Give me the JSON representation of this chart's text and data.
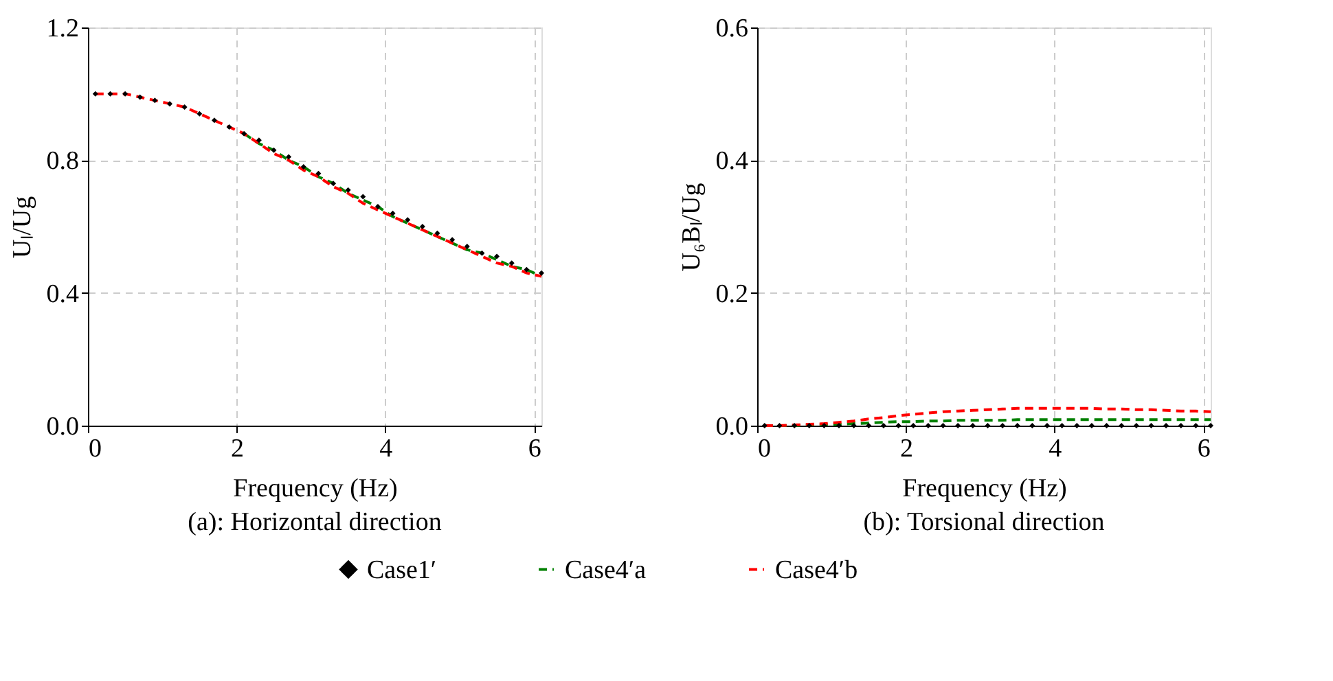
{
  "chart_data": [
    {
      "type": "line",
      "title": "(a): Horizontal direction",
      "xlabel": "Frequency (Hz)",
      "ylabel": "Uₗ/Ug",
      "xlim": [
        0,
        6.1
      ],
      "xticks": [
        0,
        2,
        4,
        6
      ],
      "ylim": [
        0,
        1.2
      ],
      "yticks": [
        {
          "value": 0,
          "label": "0.0"
        },
        0.4,
        0.8,
        1.2
      ],
      "grid": true,
      "legend": "bottom",
      "x": [
        0.1,
        0.3,
        0.5,
        0.7,
        0.9,
        1.1,
        1.3,
        1.5,
        1.7,
        1.9,
        2.1,
        2.3,
        2.5,
        2.7,
        2.9,
        3.1,
        3.3,
        3.5,
        3.7,
        3.9,
        4.1,
        4.3,
        4.5,
        4.7,
        4.9,
        5.1,
        5.3,
        5.5,
        5.7,
        5.9,
        6.1
      ],
      "series": [
        {
          "name": "Case1′",
          "type": "scatter",
          "color": "#000000",
          "marker": "diamond",
          "values": [
            1.0,
            1.0,
            1.0,
            0.99,
            0.98,
            0.97,
            0.96,
            0.94,
            0.92,
            0.9,
            0.88,
            0.86,
            0.83,
            0.81,
            0.78,
            0.76,
            0.73,
            0.71,
            0.69,
            0.66,
            0.64,
            0.62,
            0.6,
            0.58,
            0.56,
            0.54,
            0.52,
            0.51,
            0.49,
            0.47,
            0.46
          ]
        },
        {
          "name": "Case4′a",
          "color": "#008000",
          "line_style": "dashed",
          "values": [
            null,
            null,
            null,
            null,
            null,
            null,
            null,
            null,
            null,
            null,
            0.88,
            0.85,
            0.83,
            0.8,
            0.78,
            0.75,
            0.73,
            0.7,
            0.68,
            0.66,
            0.63,
            0.61,
            0.59,
            0.57,
            0.55,
            0.53,
            0.52,
            0.5,
            0.48,
            0.47,
            0.45
          ]
        },
        {
          "name": "Case4′b",
          "color": "#ff0000",
          "line_style": "dashed",
          "values": [
            1.0,
            1.0,
            1.0,
            0.99,
            0.98,
            0.97,
            0.96,
            0.94,
            0.92,
            0.9,
            0.88,
            0.85,
            0.82,
            0.8,
            0.77,
            0.75,
            0.72,
            0.7,
            0.67,
            0.65,
            0.63,
            0.61,
            0.59,
            0.57,
            0.55,
            0.53,
            0.51,
            0.49,
            0.48,
            0.46,
            0.45
          ]
        }
      ]
    },
    {
      "type": "line",
      "title": "(b): Torsional direction",
      "xlabel": "Frequency (Hz)",
      "ylabel": "U₆Bₗ/Ug",
      "xlim": [
        0,
        6.1
      ],
      "xticks": [
        0,
        2,
        4,
        6
      ],
      "ylim": [
        0,
        0.6
      ],
      "yticks": [
        {
          "value": 0,
          "label": "0.0"
        },
        0.2,
        0.4,
        0.6
      ],
      "grid": true,
      "legend": "bottom",
      "x": [
        0.1,
        0.3,
        0.5,
        0.7,
        0.9,
        1.1,
        1.3,
        1.5,
        1.7,
        1.9,
        2.1,
        2.3,
        2.5,
        2.7,
        2.9,
        3.1,
        3.3,
        3.5,
        3.7,
        3.9,
        4.1,
        4.3,
        4.5,
        4.7,
        4.9,
        5.1,
        5.3,
        5.5,
        5.7,
        5.9,
        6.1
      ],
      "series": [
        {
          "name": "Case1′",
          "type": "scatter",
          "color": "#000000",
          "marker": "diamond",
          "values": [
            0,
            0,
            0,
            0,
            0,
            0,
            0,
            0,
            0,
            0,
            0,
            0,
            0,
            0,
            0,
            0,
            0,
            0,
            0,
            0,
            0,
            0,
            0,
            0,
            0,
            0,
            0,
            0,
            0,
            0,
            0
          ]
        },
        {
          "name": "Case4′a",
          "color": "#008000",
          "line_style": "dashed",
          "values": [
            0.0,
            0.0,
            0.0,
            0.001,
            0.001,
            0.002,
            0.003,
            0.004,
            0.005,
            0.006,
            0.006,
            0.007,
            0.007,
            0.008,
            0.008,
            0.008,
            0.008,
            0.009,
            0.009,
            0.009,
            0.009,
            0.009,
            0.009,
            0.009,
            0.009,
            0.009,
            0.009,
            0.009,
            0.009,
            0.009,
            0.009
          ]
        },
        {
          "name": "Case4′b",
          "color": "#ff0000",
          "line_style": "dashed",
          "values": [
            0.0,
            0.0,
            0.001,
            0.002,
            0.003,
            0.005,
            0.007,
            0.01,
            0.012,
            0.015,
            0.017,
            0.019,
            0.021,
            0.022,
            0.023,
            0.024,
            0.025,
            0.026,
            0.026,
            0.026,
            0.026,
            0.026,
            0.026,
            0.025,
            0.025,
            0.024,
            0.024,
            0.023,
            0.022,
            0.022,
            0.021
          ]
        }
      ]
    }
  ]
}
